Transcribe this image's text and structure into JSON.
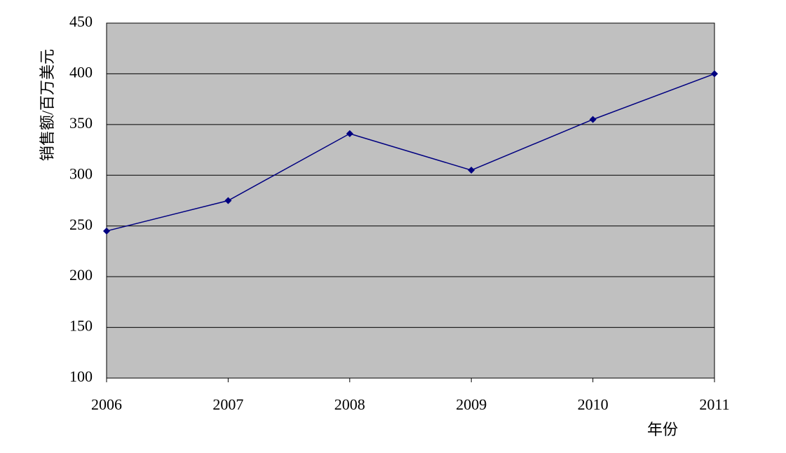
{
  "chart_data": {
    "type": "line",
    "x_label": "年份",
    "y_label": "销售额/百万美元",
    "categories": [
      "2006",
      "2007",
      "2008",
      "2009",
      "2010",
      "2011"
    ],
    "series": [
      {
        "name": "销售额",
        "color": "#000080",
        "values": [
          245,
          275,
          341,
          305,
          355,
          400
        ]
      }
    ],
    "ylim": [
      100,
      450
    ],
    "yticks": [
      100,
      150,
      200,
      250,
      300,
      350,
      400,
      450
    ],
    "grid": true,
    "background": "#c0c0c0"
  }
}
